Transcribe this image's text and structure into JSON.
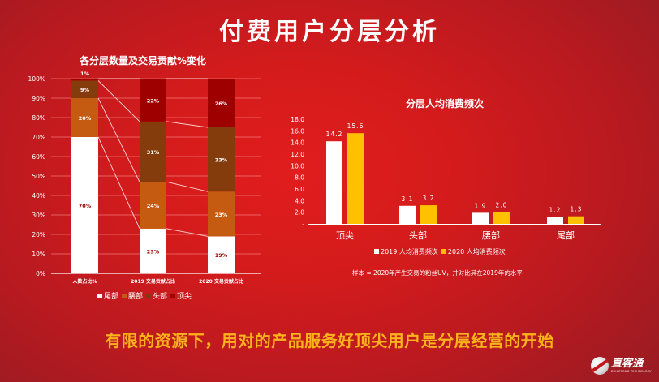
{
  "header": {
    "title": "付费用户分层分析"
  },
  "left_chart": {
    "title": "各分层数量及交易贡献%变化"
  },
  "right_chart": {
    "title": "分层人均消费频次"
  },
  "note": "样本 = 2020年产生交易的粉丝UV，并对比其在2019年的水平",
  "conclusion": "有限的资源下，用对的产品服务好顶尖用户是分层经营的开始",
  "logo": {
    "name": "直客通",
    "subtitle": "ZHIKETONG TECHNOLOGY"
  },
  "legend_left": [
    {
      "label": "尾部",
      "color": "#ffffff"
    },
    {
      "label": "腰部",
      "color": "#c55a11"
    },
    {
      "label": "头部",
      "color": "#843c0c"
    },
    {
      "label": "顶尖",
      "color": "#9e0000"
    }
  ],
  "legend_right": [
    {
      "label": "2019 人均消费频次",
      "color": "#ffffff"
    },
    {
      "label": "2020 人均消费频次",
      "color": "#ffc000"
    }
  ],
  "chart_data": [
    {
      "type": "bar",
      "stacked": true,
      "percent": true,
      "title": "各分层数量及交易贡献%变化",
      "categories": [
        "人数占比%",
        "2019 交易贡献占比",
        "2020 交易贡献占比"
      ],
      "series": [
        {
          "name": "尾部",
          "color": "#ffffff",
          "values": [
            70,
            23,
            19
          ],
          "label_color": "#9e0000"
        },
        {
          "name": "腰部",
          "color": "#c55a11",
          "values": [
            20,
            24,
            23
          ],
          "label_color": "#ffffff"
        },
        {
          "name": "头部",
          "color": "#843c0c",
          "values": [
            9,
            31,
            33
          ],
          "label_color": "#ffffff"
        },
        {
          "name": "顶尖",
          "color": "#9e0000",
          "values": [
            1,
            22,
            26
          ],
          "label_color": "#ffffff"
        }
      ],
      "yticks": [
        "0%",
        "10%",
        "20%",
        "30%",
        "40%",
        "50%",
        "60%",
        "70%",
        "80%",
        "90%",
        "100%"
      ],
      "ylim": [
        0,
        100
      ],
      "grid": true,
      "legend_position": "bottom"
    },
    {
      "type": "bar",
      "title": "分层人均消费频次",
      "categories": [
        "顶尖",
        "头部",
        "腰部",
        "尾部"
      ],
      "series": [
        {
          "name": "2019 人均消费频次",
          "color": "#ffffff",
          "values": [
            14.2,
            3.1,
            1.9,
            1.2
          ]
        },
        {
          "name": "2020 人均消费频次",
          "color": "#ffc000",
          "values": [
            15.6,
            3.2,
            2.0,
            1.3
          ]
        }
      ],
      "yticks": [
        "-",
        "2.0",
        "4.0",
        "6.0",
        "8.0",
        "10.0",
        "12.0",
        "14.0",
        "16.0",
        "18.0"
      ],
      "ylim": [
        0,
        18
      ],
      "grid": false,
      "legend_position": "bottom"
    }
  ]
}
